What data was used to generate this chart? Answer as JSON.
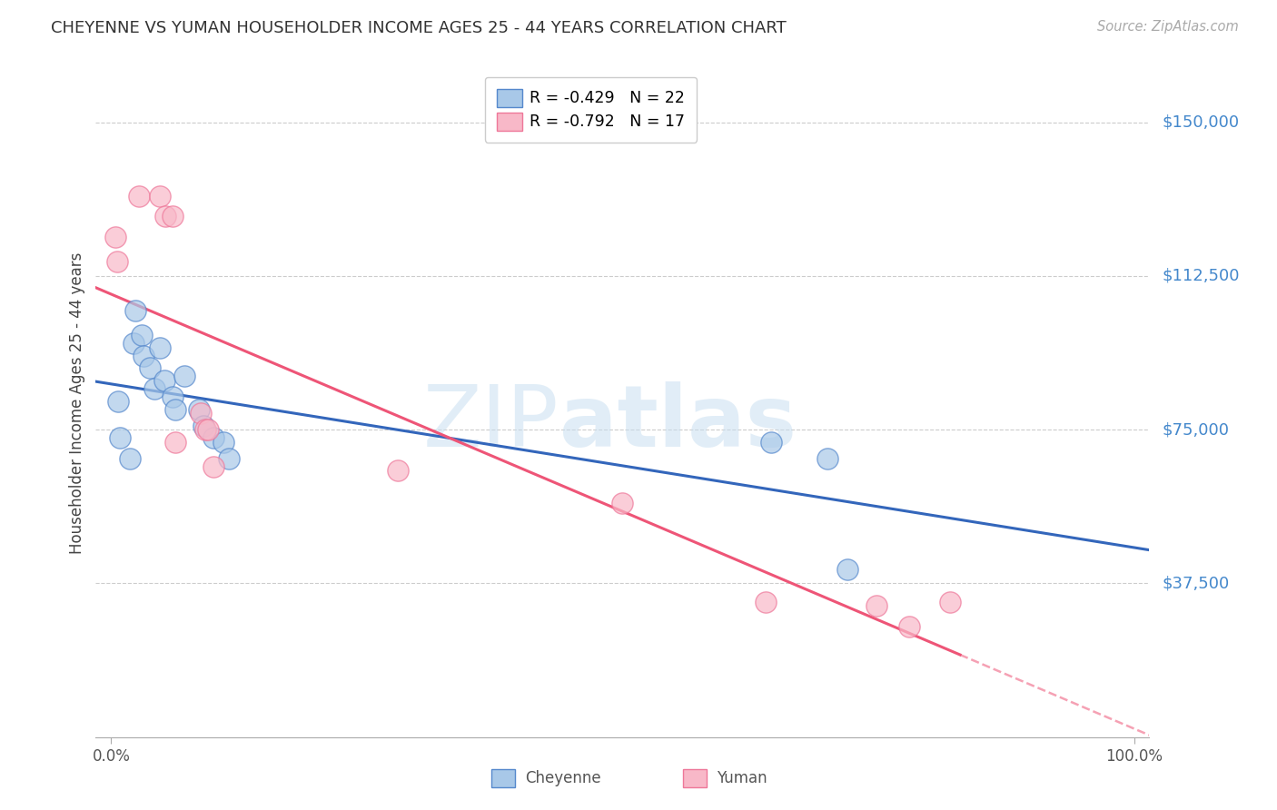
{
  "title": "CHEYENNE VS YUMAN HOUSEHOLDER INCOME AGES 25 - 44 YEARS CORRELATION CHART",
  "source": "Source: ZipAtlas.com",
  "ylabel": "Householder Income Ages 25 - 44 years",
  "ytick_labels": [
    "$37,500",
    "$75,000",
    "$112,500",
    "$150,000"
  ],
  "ytick_values": [
    37500,
    75000,
    112500,
    150000
  ],
  "ymin": 0,
  "ymax": 163000,
  "xmin": -0.015,
  "xmax": 1.015,
  "cheyenne_color": "#A8C8E8",
  "yuman_color": "#F8B8C8",
  "cheyenne_edge_color": "#5588CC",
  "yuman_edge_color": "#EE7799",
  "cheyenne_line_color": "#3366BB",
  "yuman_line_color": "#EE5577",
  "right_label_color": "#4488CC",
  "legend_label_cheyenne": "R = -0.429   N = 22",
  "legend_label_yuman": "R = -0.792   N = 17",
  "bottom_legend_cheyenne": "Cheyenne",
  "bottom_legend_yuman": "Yuman",
  "cheyenne_x": [
    0.007,
    0.009,
    0.018,
    0.022,
    0.024,
    0.03,
    0.032,
    0.038,
    0.042,
    0.048,
    0.052,
    0.06,
    0.063,
    0.072,
    0.086,
    0.09,
    0.1,
    0.11,
    0.115,
    0.645,
    0.7,
    0.72
  ],
  "cheyenne_y": [
    82000,
    73000,
    68000,
    96000,
    104000,
    98000,
    93000,
    90000,
    85000,
    95000,
    87000,
    83000,
    80000,
    88000,
    80000,
    76000,
    73000,
    72000,
    68000,
    72000,
    68000,
    41000
  ],
  "yuman_x": [
    0.004,
    0.006,
    0.027,
    0.048,
    0.053,
    0.06,
    0.063,
    0.088,
    0.092,
    0.095,
    0.1,
    0.28,
    0.5,
    0.64,
    0.748,
    0.78,
    0.82
  ],
  "yuman_y": [
    122000,
    116000,
    132000,
    132000,
    127000,
    127000,
    72000,
    79000,
    75000,
    75000,
    66000,
    65000,
    57000,
    33000,
    32000,
    27000,
    33000
  ]
}
